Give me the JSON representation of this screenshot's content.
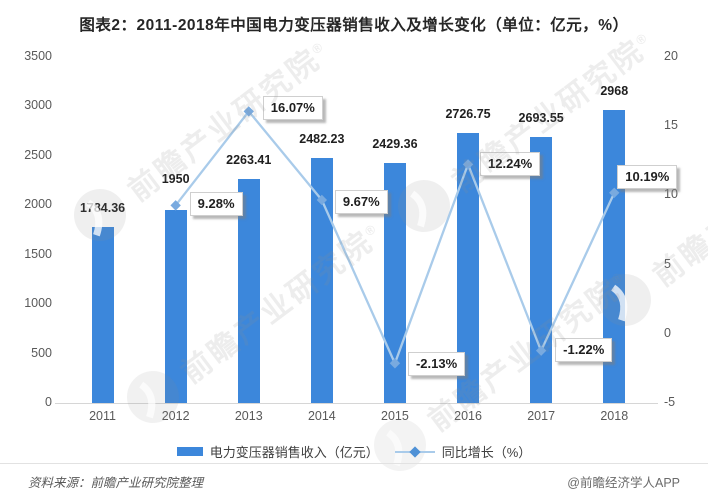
{
  "title": "图表2：2011-2018年中国电力变压器销售收入及增长变化（单位：亿元，%）",
  "chart_data": {
    "type": "bar+line",
    "categories": [
      "2011",
      "2012",
      "2013",
      "2014",
      "2015",
      "2016",
      "2017",
      "2018"
    ],
    "series": [
      {
        "name": "电力变压器销售收入（亿元）",
        "type": "bar",
        "color": "#3C87DB",
        "values": [
          1784.36,
          1950,
          2263.41,
          2482.23,
          2429.36,
          2726.75,
          2693.55,
          2968
        ],
        "labels": [
          "1784.36",
          "1950",
          "2263.41",
          "2482.23",
          "2429.36",
          "2726.75",
          "2693.55",
          "2968"
        ]
      },
      {
        "name": "同比增长（%）",
        "type": "line",
        "color": "#A9CBEA",
        "marker_color": "#79AADF",
        "values": [
          null,
          9.28,
          16.07,
          9.67,
          -2.13,
          12.24,
          -1.22,
          10.19
        ],
        "labels": [
          null,
          "9.28%",
          "16.07%",
          "9.67%",
          "-2.13%",
          "12.24%",
          "-1.22%",
          "10.19%"
        ]
      }
    ],
    "left_axis": {
      "min": 0,
      "max": 3500,
      "ticks": [
        "3500",
        "3000",
        "2500",
        "2000",
        "1500",
        "1000",
        "500",
        "0"
      ]
    },
    "right_axis": {
      "min": -5,
      "max": 20,
      "ticks": [
        "20",
        "15",
        "10",
        "5",
        "0",
        "-5"
      ]
    },
    "legend_position": "bottom",
    "grid": false
  },
  "footer": {
    "source": "资料来源：前瞻产业研究院整理",
    "credit": "@前瞻经济学人APP"
  },
  "watermark": {
    "text": "前瞻产业研究院",
    "registered": "®"
  },
  "colors": {
    "bar": "#3C87DB",
    "line": "#A9CBEA",
    "marker": "#79AADF",
    "title_text": "#262626",
    "axis_text": "#595959",
    "label_text": "#1f1f1f"
  }
}
